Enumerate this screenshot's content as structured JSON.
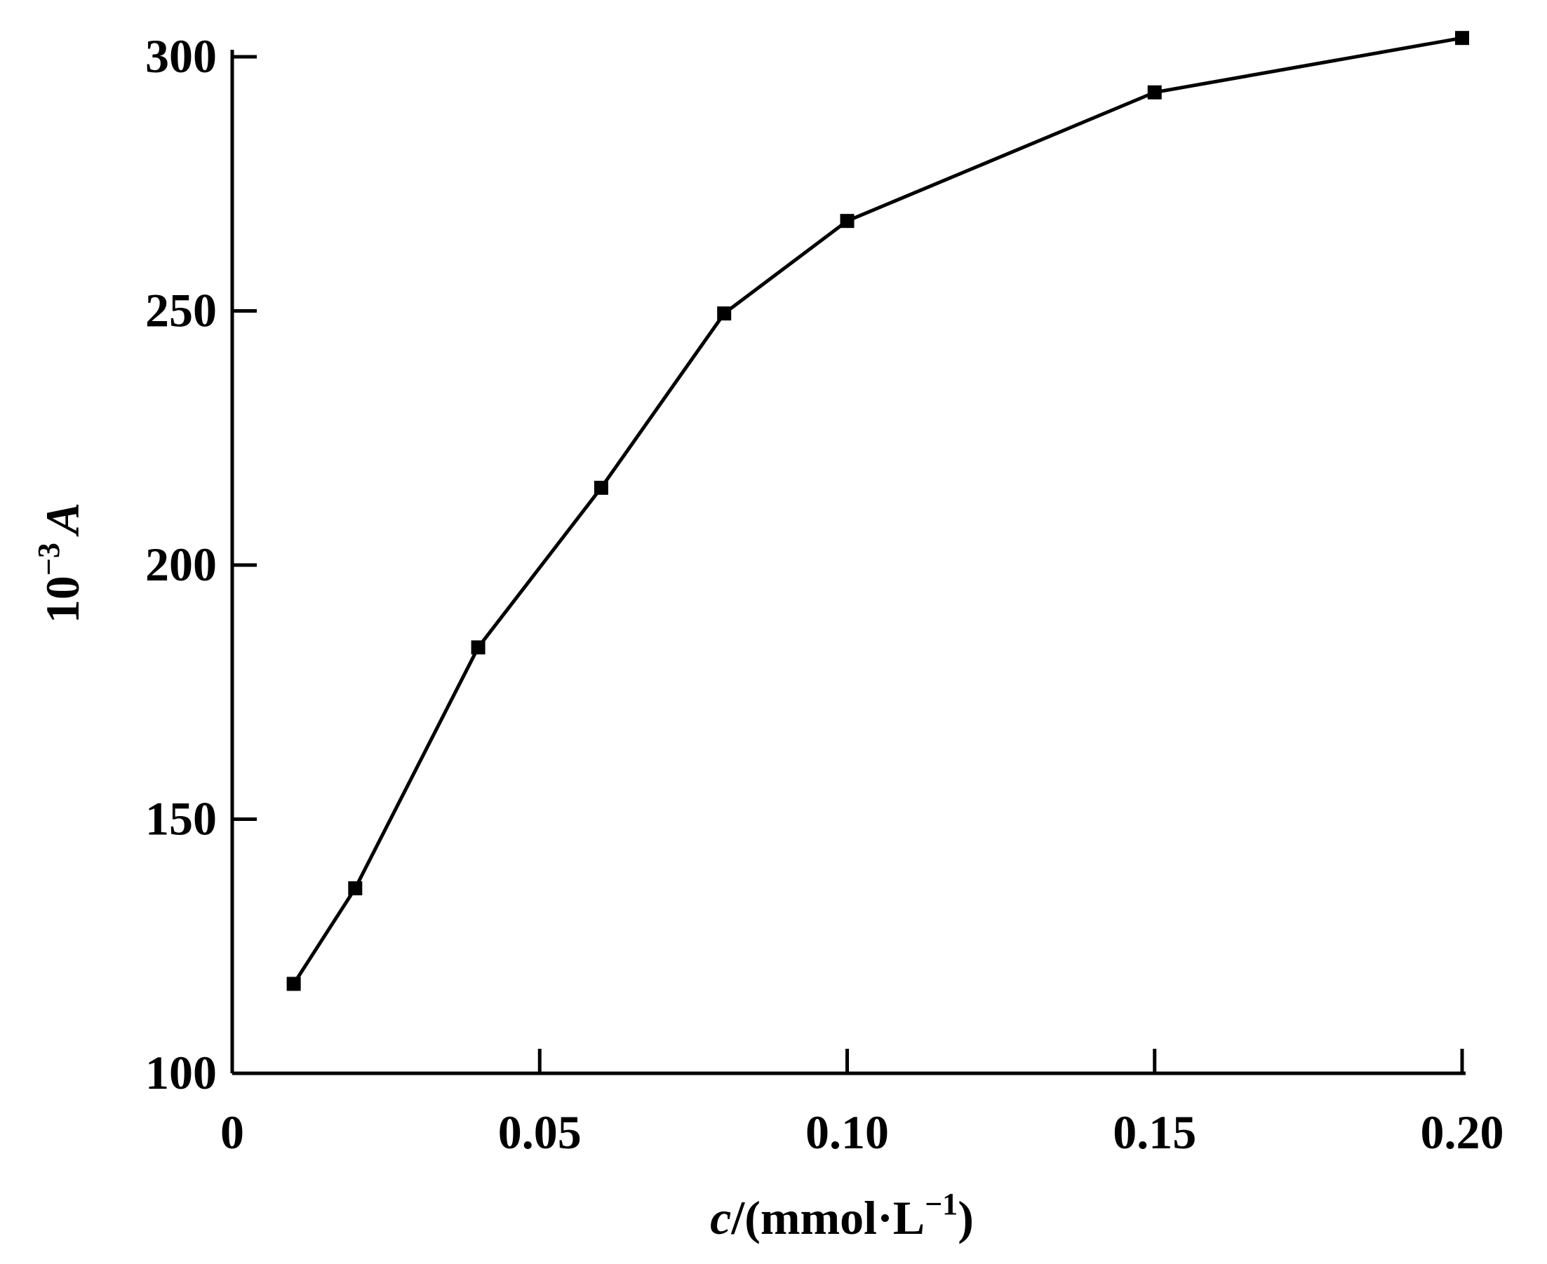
{
  "chart_data": {
    "type": "line",
    "title": "",
    "xlabel_italic": "c",
    "xlabel_rest": "/(mmol·L",
    "xlabel_sup": "−1",
    "xlabel_close": ")",
    "ylabel_prefix": "10",
    "ylabel_sup": "−3",
    "ylabel_var": "A",
    "xlim": [
      0,
      0.2
    ],
    "ylim": [
      100,
      300
    ],
    "x_ticks": [
      0,
      0.05,
      0.1,
      0.15,
      0.2
    ],
    "x_tick_labels": [
      "0",
      "0.05",
      "0.10",
      "0.15",
      "0.20"
    ],
    "y_ticks": [
      100,
      150,
      200,
      250,
      300
    ],
    "y_tick_labels": [
      "100",
      "150",
      "200",
      "250",
      "300"
    ],
    "grid": false,
    "marker": "square",
    "color": "#000000",
    "x": [
      0.01,
      0.02,
      0.04,
      0.06,
      0.08,
      0.1,
      0.15,
      0.2
    ],
    "y": [
      117.6,
      136.4,
      183.8,
      215.2,
      249.5,
      267.7,
      293.0,
      303.7
    ]
  }
}
